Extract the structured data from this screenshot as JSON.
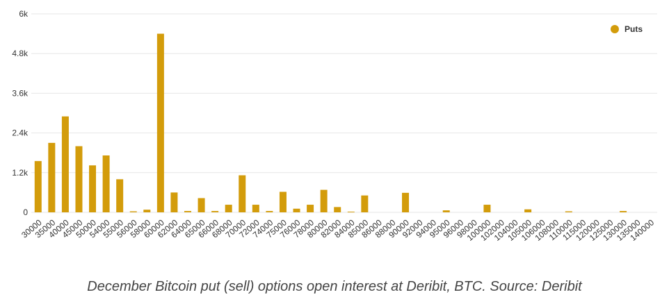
{
  "caption": "December Bitcoin put (sell) options open interest at Deribit, BTC. Source: Deribit",
  "chart_data": {
    "type": "bar",
    "title": "",
    "xlabel": "",
    "ylabel": "",
    "ylim": [
      0,
      6000
    ],
    "y_ticks": [
      {
        "value": 0,
        "label": "0"
      },
      {
        "value": 1200,
        "label": "1.2k"
      },
      {
        "value": 2400,
        "label": "2.4k"
      },
      {
        "value": 3600,
        "label": "3.6k"
      },
      {
        "value": 4800,
        "label": "4.8k"
      },
      {
        "value": 6000,
        "label": "6k"
      }
    ],
    "grid": true,
    "legend": "top-right",
    "bar_color": "#D39C0B",
    "categories": [
      "30000",
      "35000",
      "40000",
      "45000",
      "50000",
      "54000",
      "55000",
      "56000",
      "58000",
      "60000",
      "62000",
      "64000",
      "65000",
      "66000",
      "68000",
      "70000",
      "72000",
      "74000",
      "75000",
      "76000",
      "78000",
      "80000",
      "82000",
      "84000",
      "85000",
      "86000",
      "88000",
      "90000",
      "92000",
      "94000",
      "95000",
      "96000",
      "98000",
      "100000",
      "102000",
      "104000",
      "105000",
      "106000",
      "108000",
      "110000",
      "115000",
      "120000",
      "125000",
      "130000",
      "135000",
      "140000"
    ],
    "series": [
      {
        "name": "Puts",
        "values": [
          1550,
          2100,
          2900,
          2000,
          1420,
          1720,
          1000,
          30,
          80,
          5400,
          600,
          40,
          430,
          40,
          230,
          1120,
          230,
          40,
          620,
          110,
          230,
          680,
          160,
          20,
          510,
          0,
          0,
          590,
          0,
          0,
          60,
          0,
          0,
          230,
          0,
          0,
          90,
          0,
          0,
          30,
          0,
          0,
          0,
          40,
          0,
          0
        ]
      }
    ]
  }
}
